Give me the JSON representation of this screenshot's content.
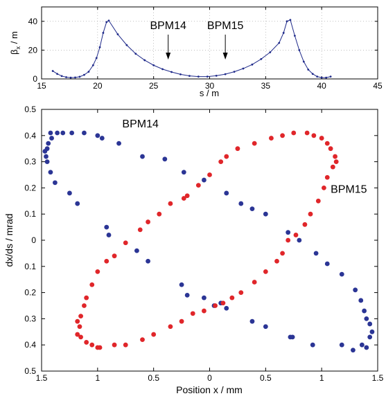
{
  "chart_data": [
    {
      "type": "line",
      "xlabel": "s / m",
      "ylabel": "β",
      "ylabel_sub": "x",
      "ylabel_unit": " / m",
      "xlim": [
        15,
        45
      ],
      "ylim": [
        0,
        50
      ],
      "xticks": [
        "15",
        "20",
        "25",
        "30",
        "35",
        "40",
        "45"
      ],
      "yticks": [
        "0",
        "20",
        "40"
      ],
      "grid": true,
      "series": [
        {
          "color": "#1f2a8a",
          "x": [
            16.0,
            16.4,
            16.8,
            17.2,
            17.6,
            18.0,
            18.4,
            18.8,
            19.2,
            19.6,
            19.9,
            20.2,
            20.5,
            20.8,
            21.0,
            21.8,
            22.6,
            23.4,
            24.2,
            25.0,
            25.8,
            26.6,
            27.4,
            28.2,
            29.0,
            29.8,
            30.6,
            31.4,
            32.2,
            33.0,
            33.8,
            34.6,
            35.4,
            36.2,
            36.6,
            36.9,
            37.2,
            37.6,
            38.0,
            38.4,
            38.8,
            39.2,
            39.6,
            40.0,
            40.4,
            40.8
          ],
          "y": [
            5.5,
            3.5,
            2.0,
            1.2,
            0.9,
            1.0,
            1.5,
            2.8,
            5.0,
            9.5,
            14.5,
            22.0,
            32.0,
            39.5,
            40.5,
            31.0,
            23.5,
            17.5,
            13.0,
            9.5,
            6.8,
            4.8,
            3.2,
            2.1,
            1.6,
            1.6,
            2.2,
            3.3,
            5.0,
            7.2,
            10.0,
            13.8,
            18.5,
            25.0,
            32.0,
            40.0,
            41.0,
            30.0,
            20.0,
            12.0,
            6.5,
            3.5,
            1.6,
            0.9,
            0.9,
            1.6
          ]
        }
      ],
      "annotations": [
        {
          "label": "BPM14",
          "x": 26.3
        },
        {
          "label": "BPM15",
          "x": 31.4
        }
      ]
    },
    {
      "type": "scatter",
      "xlabel": "Position x / mm",
      "ylabel": "dx/ds / mrad",
      "xlim": [
        -1.5,
        1.5
      ],
      "ylim": [
        -0.5,
        0.5
      ],
      "xtick_values": [
        -1.5,
        -1,
        -0.5,
        0,
        0.5,
        1,
        1.5
      ],
      "xticks": [
        "1.5",
        "1",
        "0.5",
        "0",
        "0.5",
        "1",
        "1.5"
      ],
      "ytick_values": [
        0.5,
        0.4,
        0.3,
        0.2,
        0.1,
        0,
        -0.1,
        -0.2,
        -0.3,
        -0.4,
        -0.5
      ],
      "yticks": [
        "0.5",
        "0.4",
        "0.3",
        "0.2",
        "0.1",
        "0",
        "0.1",
        "0.2",
        "0.3",
        "0.4",
        "0.5"
      ],
      "grid": false,
      "series": [
        {
          "name": "BPM14",
          "color": "#2b3595",
          "points": [
            [
              -1.45,
              0.35
            ],
            [
              -1.44,
              0.37
            ],
            [
              -1.42,
              0.41
            ],
            [
              -1.41,
              0.39
            ],
            [
              -1.36,
              0.41
            ],
            [
              -1.31,
              0.41
            ],
            [
              -1.23,
              0.41
            ],
            [
              -1.12,
              0.41
            ],
            [
              -1.0,
              0.4
            ],
            [
              -0.96,
              0.39
            ],
            [
              -0.81,
              0.37
            ],
            [
              -0.6,
              0.32
            ],
            [
              -0.4,
              0.31
            ],
            [
              -0.23,
              0.26
            ],
            [
              -0.05,
              0.23
            ],
            [
              0.15,
              0.18
            ],
            [
              0.28,
              0.14
            ],
            [
              0.38,
              0.12
            ],
            [
              0.5,
              0.1
            ],
            [
              0.7,
              0.03
            ],
            [
              0.8,
              -0.0
            ],
            [
              0.95,
              -0.05
            ],
            [
              1.05,
              -0.09
            ],
            [
              1.18,
              -0.13
            ],
            [
              1.3,
              -0.19
            ],
            [
              1.35,
              -0.23
            ],
            [
              1.38,
              -0.27
            ],
            [
              1.4,
              -0.3
            ],
            [
              1.43,
              -0.32
            ],
            [
              1.45,
              -0.35
            ],
            [
              1.43,
              -0.37
            ],
            [
              1.4,
              -0.41
            ],
            [
              1.36,
              -0.4
            ],
            [
              1.28,
              -0.42
            ],
            [
              1.18,
              -0.4
            ],
            [
              0.92,
              -0.4
            ],
            [
              0.74,
              -0.37
            ],
            [
              0.72,
              -0.37
            ],
            [
              0.5,
              -0.33
            ],
            [
              0.38,
              -0.31
            ],
            [
              0.15,
              -0.26
            ],
            [
              0.1,
              -0.24
            ],
            [
              0.04,
              -0.25
            ],
            [
              -0.05,
              -0.22
            ],
            [
              -0.2,
              -0.21
            ],
            [
              -0.25,
              -0.17
            ],
            [
              -0.55,
              -0.08
            ],
            [
              -0.65,
              -0.04
            ],
            [
              -0.9,
              0.02
            ],
            [
              -0.92,
              0.05
            ],
            [
              -1.18,
              0.14
            ],
            [
              -1.25,
              0.18
            ],
            [
              -1.38,
              0.22
            ],
            [
              -1.42,
              0.26
            ],
            [
              -1.45,
              0.3
            ],
            [
              -1.46,
              0.32
            ],
            [
              -1.47,
              0.34
            ]
          ]
        },
        {
          "name": "BPM15",
          "color": "#e0262a",
          "points": [
            [
              -1.18,
              -0.31
            ],
            [
              -1.15,
              -0.29
            ],
            [
              -1.12,
              -0.25
            ],
            [
              -1.1,
              -0.22
            ],
            [
              -1.05,
              -0.17
            ],
            [
              -1.0,
              -0.12
            ],
            [
              -0.92,
              -0.08
            ],
            [
              -0.85,
              -0.06
            ],
            [
              -0.75,
              -0.01
            ],
            [
              -0.62,
              0.04
            ],
            [
              -0.55,
              0.07
            ],
            [
              -0.45,
              0.1
            ],
            [
              -0.35,
              0.14
            ],
            [
              -0.23,
              0.16
            ],
            [
              -0.2,
              0.17
            ],
            [
              -0.1,
              0.21
            ],
            [
              0.0,
              0.25
            ],
            [
              0.1,
              0.3
            ],
            [
              0.15,
              0.32
            ],
            [
              0.25,
              0.35
            ],
            [
              0.4,
              0.37
            ],
            [
              0.55,
              0.39
            ],
            [
              0.65,
              0.4
            ],
            [
              0.75,
              0.41
            ],
            [
              0.87,
              0.41
            ],
            [
              0.93,
              0.4
            ],
            [
              1.0,
              0.39
            ],
            [
              1.05,
              0.37
            ],
            [
              1.08,
              0.35
            ],
            [
              1.12,
              0.32
            ],
            [
              1.13,
              0.3
            ],
            [
              1.1,
              0.28
            ],
            [
              1.05,
              0.24
            ],
            [
              1.02,
              0.2
            ],
            [
              0.97,
              0.15
            ],
            [
              0.9,
              0.1
            ],
            [
              0.85,
              0.06
            ],
            [
              0.77,
              0.02
            ],
            [
              0.7,
              0.0
            ],
            [
              0.65,
              -0.05
            ],
            [
              0.6,
              -0.08
            ],
            [
              0.5,
              -0.12
            ],
            [
              0.4,
              -0.16
            ],
            [
              0.28,
              -0.2
            ],
            [
              0.2,
              -0.22
            ],
            [
              0.12,
              -0.24
            ],
            [
              0.05,
              -0.25
            ],
            [
              -0.05,
              -0.27
            ],
            [
              -0.15,
              -0.28
            ],
            [
              -0.25,
              -0.31
            ],
            [
              -0.35,
              -0.33
            ],
            [
              -0.5,
              -0.36
            ],
            [
              -0.6,
              -0.38
            ],
            [
              -0.75,
              -0.4
            ],
            [
              -0.85,
              -0.4
            ],
            [
              -0.98,
              -0.41
            ],
            [
              -1.0,
              -0.41
            ],
            [
              -1.05,
              -0.4
            ],
            [
              -1.1,
              -0.39
            ],
            [
              -1.15,
              -0.37
            ],
            [
              -1.18,
              -0.36
            ],
            [
              -1.16,
              -0.33
            ]
          ]
        }
      ],
      "annotations": [
        {
          "label": "BPM14",
          "x": -0.78,
          "y": 0.42
        },
        {
          "label": "BPM15",
          "x": 1.08,
          "y": 0.17
        }
      ]
    }
  ]
}
